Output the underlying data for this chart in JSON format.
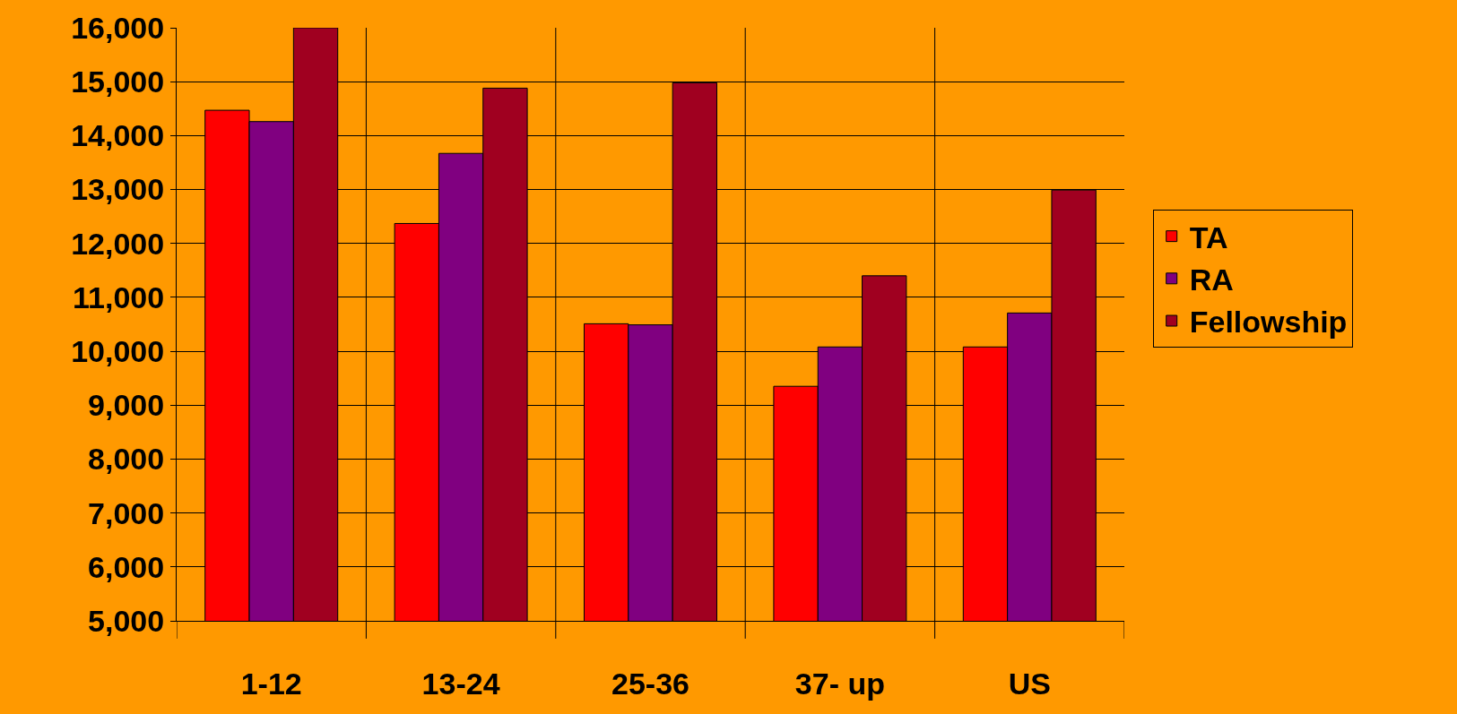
{
  "chart_data": {
    "type": "bar",
    "categories": [
      "1-12",
      "13-24",
      "25-36",
      "37- up",
      "US"
    ],
    "series": [
      {
        "name": "TA",
        "color": "#ff0000",
        "values": [
          14470,
          12370,
          10510,
          9350,
          10080
        ]
      },
      {
        "name": "RA",
        "color": "#800080",
        "values": [
          14260,
          13670,
          10490,
          10080,
          10710
        ]
      },
      {
        "name": "Fellowship",
        "color": "#a00020",
        "values": [
          16000,
          14880,
          14980,
          11400,
          12990
        ]
      }
    ],
    "ylim": [
      5000,
      16000
    ],
    "yticks": [
      {
        "value": 5000,
        "label": "5,000"
      },
      {
        "value": 6000,
        "label": "6,000"
      },
      {
        "value": 7000,
        "label": "7,000"
      },
      {
        "value": 8000,
        "label": "8,000"
      },
      {
        "value": 9000,
        "label": "9,000"
      },
      {
        "value": 10000,
        "label": "10,000"
      },
      {
        "value": 11000,
        "label": "11,000"
      },
      {
        "value": 12000,
        "label": "12,000"
      },
      {
        "value": 13000,
        "label": "13,000"
      },
      {
        "value": 14000,
        "label": "14,000"
      },
      {
        "value": 15000,
        "label": "15,000"
      },
      {
        "value": 16000,
        "label": "16,000"
      }
    ],
    "grid": true,
    "legend": "right"
  }
}
